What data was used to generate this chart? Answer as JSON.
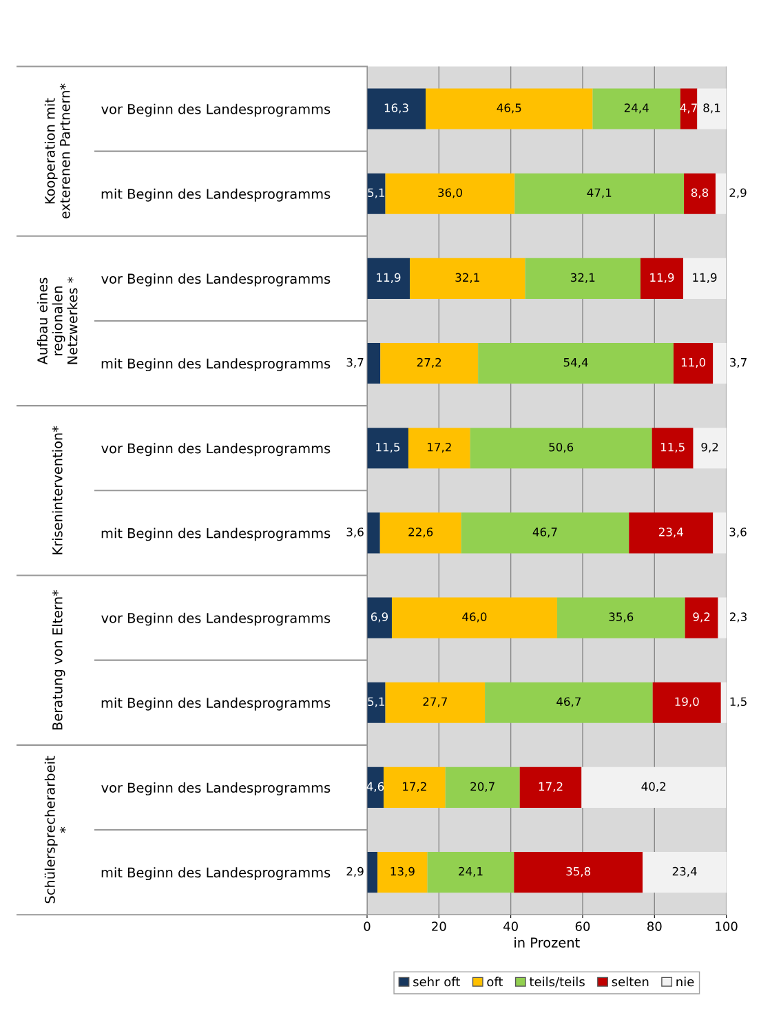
{
  "chart_data": {
    "type": "bar",
    "orientation": "horizontal",
    "stacked": true,
    "categories": [
      "vor Beginn des Landesprogramms",
      "mit Beginn des Landesprogramms",
      "vor Beginn des Landesprogramms",
      "mit Beginn des Landesprogramms",
      "vor Beginn des Landesprogramms",
      "mit Beginn des Landesprogramms",
      "vor Beginn des Landesprogramms",
      "mit Beginn des Landesprogramms",
      "vor Beginn des Landesprogramms",
      "mit Beginn des Landesprogramms"
    ],
    "annotations": [
      "Kooperation mit\nexterenen Partnern*",
      "Aufbau eines\nregionalen\nNetzwerkes *",
      "Krisenintervention*",
      "Beratung von Eltern*",
      "Schülersprecherarbeit\n*"
    ],
    "series": [
      {
        "name": "sehr oft",
        "color": "#17375e",
        "values": [
          16.3,
          5.1,
          11.9,
          3.7,
          11.5,
          3.6,
          6.9,
          5.1,
          4.6,
          2.9
        ],
        "value_labels": [
          "16,3",
          "5,1",
          "11,9",
          "3,7",
          "11,5",
          "3,6",
          "6,9",
          "5,1",
          "4,6",
          "2,9"
        ]
      },
      {
        "name": "oft",
        "color": "#ffc000",
        "values": [
          46.5,
          36.0,
          32.1,
          27.2,
          17.2,
          22.6,
          46.0,
          27.7,
          17.2,
          13.9
        ],
        "value_labels": [
          "46,5",
          "36,0",
          "32,1",
          "27,2",
          "17,2",
          "22,6",
          "46,0",
          "27,7",
          "17,2",
          "13,9"
        ]
      },
      {
        "name": "teils/teils",
        "color": "#92d050",
        "values": [
          24.4,
          47.1,
          32.1,
          54.4,
          50.6,
          46.7,
          35.6,
          46.7,
          20.7,
          24.1
        ],
        "value_labels": [
          "24,4",
          "47,1",
          "32,1",
          "54,4",
          "50,6",
          "46,7",
          "35,6",
          "46,7",
          "20,7",
          "24,1"
        ]
      },
      {
        "name": "selten",
        "color": "#c00000",
        "values": [
          4.7,
          8.8,
          11.9,
          11.0,
          11.5,
          23.4,
          9.2,
          19.0,
          17.2,
          35.8
        ],
        "value_labels": [
          "4,7",
          "8,8",
          "11,9",
          "11,0",
          "11,5",
          "23,4",
          "9,2",
          "19,0",
          "17,2",
          "35,8"
        ]
      },
      {
        "name": "nie",
        "color": "#f2f2f2",
        "values": [
          8.1,
          2.9,
          11.9,
          3.7,
          9.2,
          3.6,
          2.3,
          1.5,
          40.2,
          23.4
        ],
        "value_labels": [
          "8,1",
          "2,9",
          "11,9",
          "3,7",
          "9,2",
          "3,6",
          "2,3",
          "1,5",
          "40,2",
          "23,4"
        ]
      }
    ],
    "xlim": [
      0,
      100
    ],
    "xticks": [
      0,
      20,
      40,
      60,
      80,
      100
    ],
    "xlabel": "in Prozent",
    "grid": "x",
    "legend": "bottom"
  }
}
